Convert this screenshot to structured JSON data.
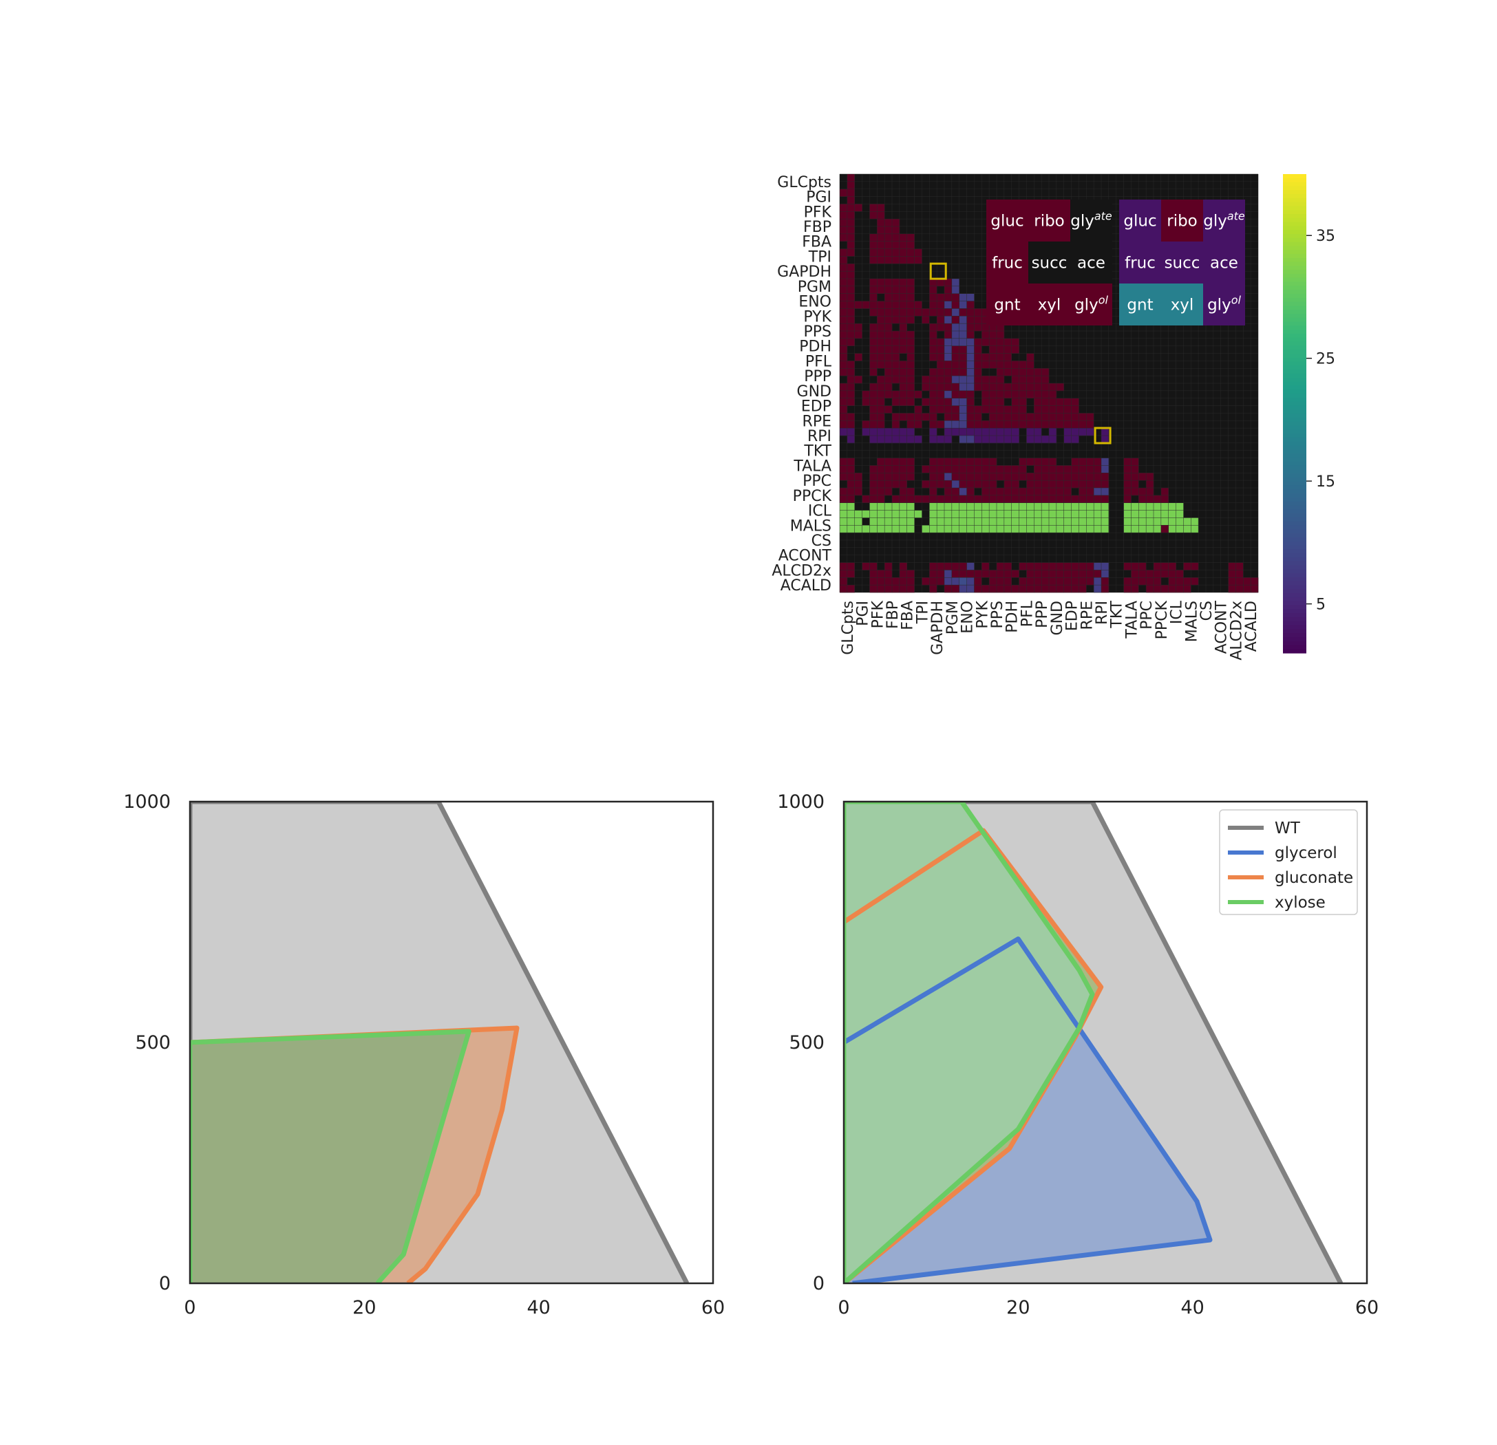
{
  "chart_data": [
    {
      "type": "heatmap",
      "title": "",
      "row_labels": [
        "GLCpts",
        "PGI",
        "PFK",
        "FBP",
        "FBA",
        "TPI",
        "GAPDH",
        "PGM",
        "ENO",
        "PYK",
        "PPS",
        "PDH",
        "PFL",
        "PPP",
        "GND",
        "EDP",
        "RPE",
        "RPI",
        "TKT",
        "TALA",
        "PPC",
        "PPCK",
        "ICL",
        "MALS",
        "CS",
        "ACONT",
        "ALCD2x",
        "ACALD"
      ],
      "col_labels": [
        "GLCpts",
        "PGI",
        "PFK",
        "FBP",
        "FBA",
        "TPI",
        "GAPDH",
        "PGM",
        "ENO",
        "PYK",
        "PPS",
        "PDH",
        "PFL",
        "PPP",
        "GND",
        "EDP",
        "RPE",
        "RPI",
        "TKT",
        "TALA",
        "PPC",
        "PPCK",
        "ICL",
        "MALS",
        "CS",
        "ACONT",
        "ALCD2x",
        "ACALD"
      ],
      "colorbar": {
        "colormap": "viridis",
        "range": [
          1,
          40
        ],
        "ticks": [
          5,
          15,
          25,
          35
        ]
      },
      "insets": [
        {
          "name": "left",
          "cells": [
            [
              {
                "label": "gluc",
                "value": 1
              },
              {
                "label": "ribo",
                "value": 1
              },
              {
                "label": "gly",
                "sup": "ate",
                "value": 0
              }
            ],
            [
              {
                "label": "fruc",
                "value": 1
              },
              {
                "label": "succ",
                "value": 0
              },
              {
                "label": "ace",
                "value": 0
              }
            ],
            [
              {
                "label": "gnt",
                "value": 1
              },
              {
                "label": "xyl",
                "value": 1
              },
              {
                "label": "gly",
                "sup": "ol",
                "value": 1
              }
            ]
          ]
        },
        {
          "name": "right",
          "cells": [
            [
              {
                "label": "gluc",
                "value": 3
              },
              {
                "label": "ribo",
                "value": 1
              },
              {
                "label": "gly",
                "sup": "ate",
                "value": 3
              }
            ],
            [
              {
                "label": "fruc",
                "value": 3
              },
              {
                "label": "succ",
                "value": 3
              },
              {
                "label": "ace",
                "value": 3
              }
            ],
            [
              {
                "label": "gnt",
                "value": 18
              },
              {
                "label": "xyl",
                "value": 18
              },
              {
                "label": "gly",
                "sup": "ol",
                "value": 3
              }
            ]
          ]
        }
      ],
      "highlights": [
        {
          "row": "GAPDH",
          "col": "GAPDH"
        },
        {
          "row": "RPI",
          "col": "RPI"
        }
      ]
    },
    {
      "type": "area",
      "panel": "bottom-left",
      "xlim": [
        0,
        60
      ],
      "ylim": [
        0,
        1000
      ],
      "xticks": [
        0,
        20,
        40,
        60
      ],
      "yticks": [
        0,
        500,
        1000
      ],
      "series": [
        {
          "key": "wt",
          "color": "#808080",
          "fill": "#cccccc",
          "points": [
            [
              0,
              0
            ],
            [
              0,
              1000
            ],
            [
              28.5,
              1000
            ],
            [
              57,
              0
            ]
          ]
        },
        {
          "key": "gluconate",
          "color": "#ee854a",
          "fill": "#d9ab8e",
          "points": [
            [
              0,
              0
            ],
            [
              0,
              500
            ],
            [
              37.5,
              530
            ],
            [
              35.8,
              360
            ],
            [
              33,
              185
            ],
            [
              27,
              30
            ],
            [
              25,
              0
            ]
          ]
        },
        {
          "key": "xylose",
          "color": "#6acc64",
          "fill": "#98ad80",
          "points": [
            [
              0,
              0
            ],
            [
              0,
              500
            ],
            [
              32,
              523
            ],
            [
              24.5,
              60
            ],
            [
              21.5,
              0
            ]
          ]
        }
      ]
    },
    {
      "type": "area",
      "panel": "bottom-right",
      "xlim": [
        0,
        60
      ],
      "ylim": [
        0,
        1000
      ],
      "xticks": [
        0,
        20,
        40,
        60
      ],
      "yticks": [
        0,
        500,
        1000
      ],
      "legend": {
        "placement": "top-right",
        "entries": [
          "WT",
          "glycerol",
          "gluconate",
          "xylose"
        ]
      },
      "series": [
        {
          "key": "wt",
          "name": "WT",
          "color": "#808080",
          "fill": "#cccccc",
          "points": [
            [
              0,
              0
            ],
            [
              0,
              1000
            ],
            [
              28.5,
              1000
            ],
            [
              57,
              0
            ]
          ]
        },
        {
          "key": "glycerol",
          "name": "glycerol",
          "color": "#4878d0",
          "fill": "#98abd0",
          "points": [
            [
              0,
              0
            ],
            [
              0,
              500
            ],
            [
              20,
              715
            ],
            [
              40.5,
              170
            ],
            [
              42,
              90
            ],
            [
              1,
              0
            ]
          ]
        },
        {
          "key": "gluconate",
          "name": "gluconate",
          "color": "#ee854a",
          "fill": "#aab984",
          "points": [
            [
              0,
              0
            ],
            [
              0,
              750
            ],
            [
              16,
              940
            ],
            [
              29.5,
              615
            ],
            [
              26.5,
              510
            ],
            [
              19,
              280
            ],
            [
              0,
              0
            ]
          ]
        },
        {
          "key": "xylose",
          "name": "xylose",
          "color": "#6acc64",
          "fill": "#9fcca3",
          "points": [
            [
              0,
              0
            ],
            [
              0,
              1000
            ],
            [
              13.5,
              1000
            ],
            [
              27,
              650
            ],
            [
              28.5,
              600
            ],
            [
              27,
              530
            ],
            [
              20,
              320
            ],
            [
              0,
              0
            ]
          ]
        }
      ]
    }
  ]
}
